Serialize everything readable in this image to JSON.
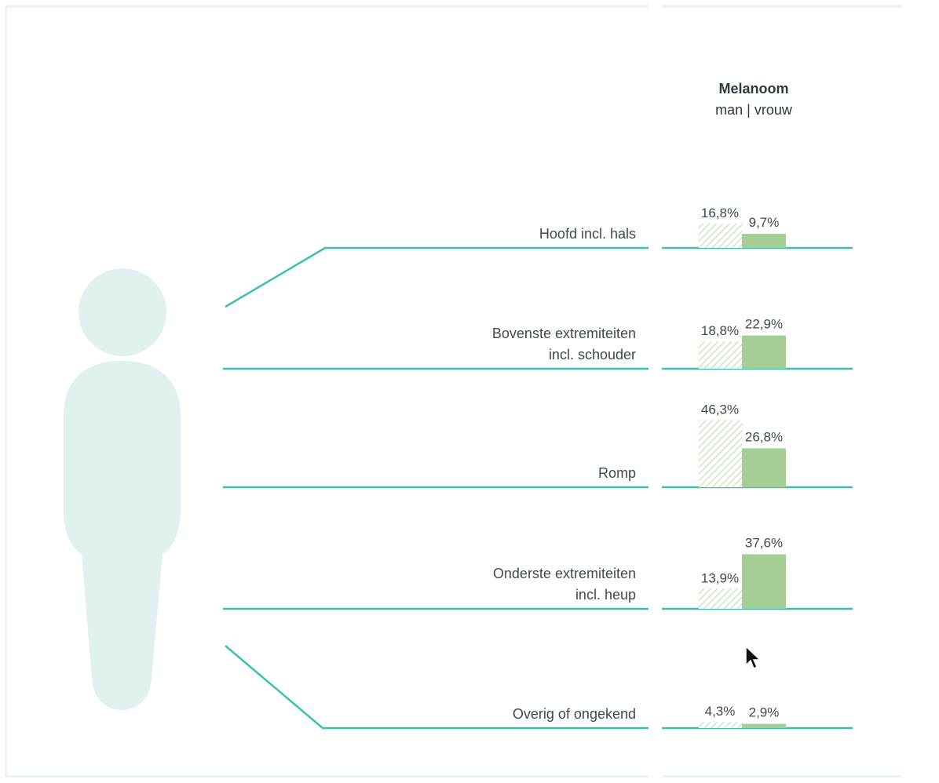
{
  "chart_data": {
    "type": "bar",
    "title": "Melanoom",
    "subtitle": "man | vrouw",
    "categories": [
      "Hoofd incl. hals",
      "Bovenste extremiteiten incl. schouder",
      "Romp",
      "Onderste extremiteiten incl. heup",
      "Overig of ongekend"
    ],
    "category_lines": [
      [
        "Hoofd incl. hals"
      ],
      [
        "Bovenste extremiteiten",
        "incl. schouder"
      ],
      [
        "Romp"
      ],
      [
        "Onderste extremiteiten",
        "incl. heup"
      ],
      [
        "Overig of ongekend"
      ]
    ],
    "series": [
      {
        "name": "man",
        "values": [
          16.8,
          18.8,
          46.3,
          13.9,
          4.3
        ],
        "labels": [
          "16,8%",
          "18,8%",
          "46,3%",
          "13,9%",
          "4,3%"
        ],
        "pattern": "hatched",
        "color": "#c5e0b8"
      },
      {
        "name": "vrouw",
        "values": [
          9.7,
          22.9,
          26.8,
          37.6,
          2.9
        ],
        "labels": [
          "9,7%",
          "22,9%",
          "26,8%",
          "37,6%",
          "2,9%"
        ],
        "pattern": "solid",
        "color": "#a6cd95"
      }
    ],
    "colors": {
      "line": "#3cc0b0",
      "figure": "#e0f1ef",
      "text": "#3d4a52"
    }
  }
}
